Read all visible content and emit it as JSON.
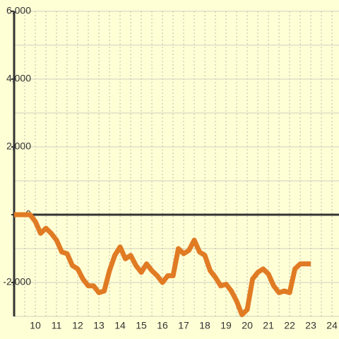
{
  "chart_data": {
    "type": "line",
    "x": [
      9,
      9.25,
      9.5,
      9.75,
      10,
      10.25,
      10.5,
      10.75,
      11,
      11.25,
      11.5,
      11.75,
      12,
      12.25,
      12.5,
      12.75,
      13,
      13.25,
      13.5,
      13.75,
      14,
      14.25,
      14.5,
      14.75,
      15,
      15.25,
      15.5,
      15.75,
      16,
      16.25,
      16.5,
      16.75,
      17,
      17.25,
      17.5,
      17.75,
      18,
      18.25,
      18.5,
      18.75,
      19,
      19.25,
      19.5,
      19.75,
      20,
      20.25,
      20.5,
      20.75,
      21,
      21.25,
      21.5,
      21.75,
      22,
      22.25,
      22.5,
      22.75,
      23
    ],
    "values": [
      0,
      0,
      0,
      0,
      -200,
      -550,
      -400,
      -550,
      -750,
      -1100,
      -1150,
      -1500,
      -1600,
      -1900,
      -2100,
      -2100,
      -2300,
      -2250,
      -1650,
      -1200,
      -950,
      -1300,
      -1200,
      -1500,
      -1700,
      -1450,
      -1650,
      -1800,
      -2000,
      -1800,
      -1800,
      -1000,
      -1150,
      -1050,
      -750,
      -1100,
      -1200,
      -1650,
      -1850,
      -2100,
      -2050,
      -2250,
      -2550,
      -2950,
      -2800,
      -1900,
      -1700,
      -1600,
      -1750,
      -2100,
      -2300,
      -2250,
      -2300,
      -1600,
      -1450,
      -1450,
      -1450
    ],
    "color": "#e07b24",
    "xlim": [
      9,
      24.33
    ],
    "xticks": [
      10,
      11,
      12,
      13,
      14,
      15,
      16,
      17,
      18,
      19,
      20,
      21,
      22,
      23,
      24
    ],
    "ylim": [
      -3000,
      6000
    ],
    "yticks": [
      {
        "value": -2000,
        "label": "-2,000"
      },
      0,
      {
        "value": 2000,
        "label": "2,000"
      },
      {
        "value": 4000,
        "label": "4,000"
      },
      {
        "value": 6000,
        "label": "6,000"
      }
    ],
    "grid": true
  }
}
